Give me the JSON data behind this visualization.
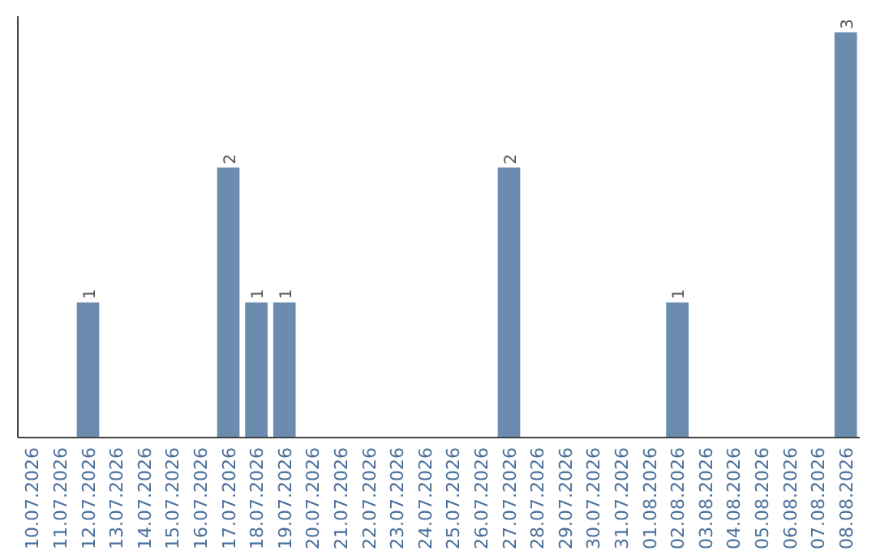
{
  "chart_data": {
    "type": "bar",
    "categories": [
      "10.07.2026",
      "11.07.2026",
      "12.07.2026",
      "13.07.2026",
      "14.07.2026",
      "15.07.2026",
      "16.07.2026",
      "17.07.2026",
      "18.07.2026",
      "19.07.2026",
      "20.07.2026",
      "21.07.2026",
      "22.07.2026",
      "23.07.2026",
      "24.07.2026",
      "25.07.2026",
      "26.07.2026",
      "27.07.2026",
      "28.07.2026",
      "29.07.2026",
      "30.07.2026",
      "31.07.2026",
      "01.08.2026",
      "02.08.2026",
      "03.08.2026",
      "04.08.2026",
      "05.08.2026",
      "06.08.2026",
      "07.08.2026",
      "08.08.2026"
    ],
    "values": [
      0,
      0,
      1,
      0,
      0,
      0,
      0,
      2,
      1,
      1,
      0,
      0,
      0,
      0,
      0,
      0,
      0,
      2,
      0,
      0,
      0,
      0,
      0,
      1,
      0,
      0,
      0,
      0,
      0,
      3
    ],
    "value_labels": [
      null,
      null,
      "1",
      null,
      null,
      null,
      null,
      "2",
      "1",
      "1",
      null,
      null,
      null,
      null,
      null,
      null,
      null,
      "2",
      null,
      null,
      null,
      null,
      null,
      "1",
      null,
      null,
      null,
      null,
      null,
      "3"
    ],
    "color": "#6b8cae",
    "tick_labels": "x",
    "grid": false
  }
}
